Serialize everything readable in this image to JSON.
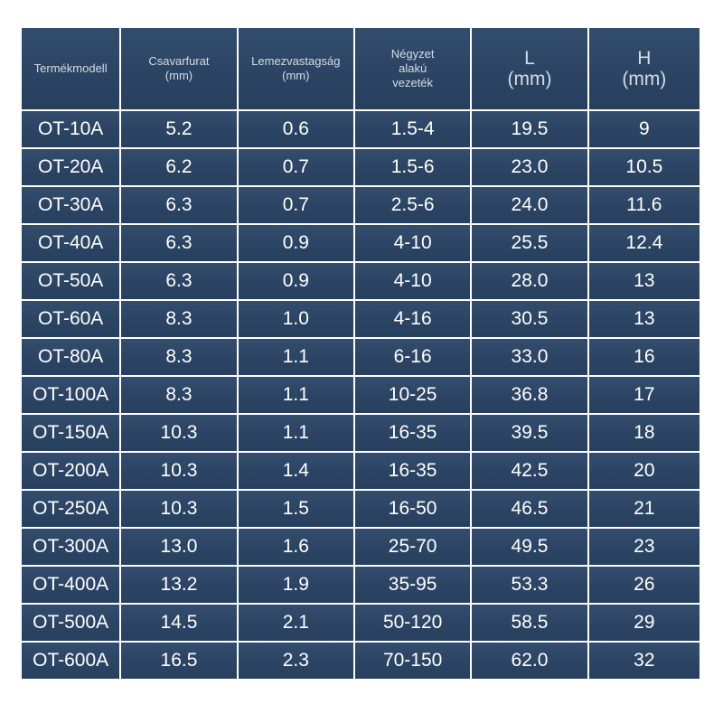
{
  "table": {
    "headers": [
      {
        "line1": "Termékmodell",
        "line2": ""
      },
      {
        "line1": "Csavarfurat",
        "line2": "(mm)"
      },
      {
        "line1": "Lemezvastagság",
        "line2": "(mm)"
      },
      {
        "line1": "Négyzet",
        "line2": "alakú",
        "line3": "vezeték"
      },
      {
        "line1": "L",
        "line2": "(mm)"
      },
      {
        "line1": "H",
        "line2": "(mm)"
      }
    ],
    "rows": [
      [
        "OT-10A",
        "5.2",
        "0.6",
        "1.5-4",
        "19.5",
        "9"
      ],
      [
        "OT-20A",
        "6.2",
        "0.7",
        "1.5-6",
        "23.0",
        "10.5"
      ],
      [
        "OT-30A",
        "6.3",
        "0.7",
        "2.5-6",
        "24.0",
        "11.6"
      ],
      [
        "OT-40A",
        "6.3",
        "0.9",
        "4-10",
        "25.5",
        "12.4"
      ],
      [
        "OT-50A",
        "6.3",
        "0.9",
        "4-10",
        "28.0",
        "13"
      ],
      [
        "OT-60A",
        "8.3",
        "1.0",
        "4-16",
        "30.5",
        "13"
      ],
      [
        "OT-80A",
        "8.3",
        "1.1",
        "6-16",
        "33.0",
        "16"
      ],
      [
        "OT-100A",
        "8.3",
        "1.1",
        "10-25",
        "36.8",
        "17"
      ],
      [
        "OT-150A",
        "10.3",
        "1.1",
        "16-35",
        "39.5",
        "18"
      ],
      [
        "OT-200A",
        "10.3",
        "1.4",
        "16-35",
        "42.5",
        "20"
      ],
      [
        "OT-250A",
        "10.3",
        "1.5",
        "16-50",
        "46.5",
        "21"
      ],
      [
        "OT-300A",
        "13.0",
        "1.6",
        "25-70",
        "49.5",
        "23"
      ],
      [
        "OT-400A",
        "13.2",
        "1.9",
        "35-95",
        "53.3",
        "26"
      ],
      [
        "OT-500A",
        "14.5",
        "2.1",
        "50-120",
        "58.5",
        "29"
      ],
      [
        "OT-600A",
        "16.5",
        "2.3",
        "70-150",
        "62.0",
        "32"
      ]
    ]
  }
}
